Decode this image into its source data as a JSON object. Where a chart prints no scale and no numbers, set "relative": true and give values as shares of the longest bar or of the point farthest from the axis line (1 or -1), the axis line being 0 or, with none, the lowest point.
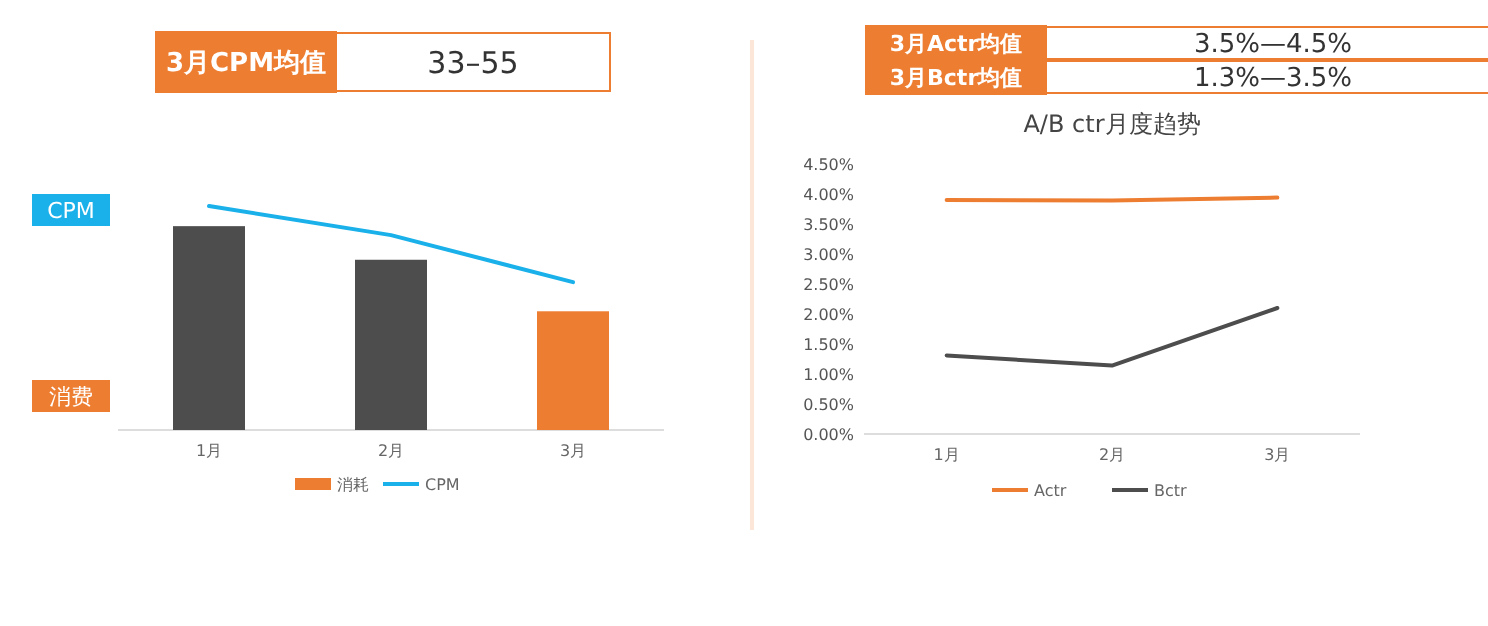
{
  "chart_data": [
    {
      "type": "other",
      "annotations": [
        "3月CPM均值",
        "33–55"
      ]
    },
    {
      "type": "other",
      "annotations": [
        "3月Actr均值",
        "3.5%—4.5%",
        "3月Bctr均值",
        "1.3%—3.5%"
      ]
    },
    {
      "type": "bar",
      "relative": true,
      "categories": [
        "1月",
        "2月",
        "3月"
      ],
      "legend": "bottom",
      "annotations": [
        "CPM",
        "消费"
      ],
      "series": [
        {
          "name": "消耗",
          "type": "bar",
          "color": "#ed7d31",
          "colors": [
            "#4d4d4d",
            "#4d4d4d",
            "#ed7d31"
          ],
          "values": [
            0.91,
            0.76,
            0.53
          ]
        },
        {
          "name": "CPM",
          "type": "line",
          "color": "#1ab0ea",
          "values": [
            1,
            0.87,
            0.66
          ]
        }
      ]
    },
    {
      "type": "line",
      "title": "A/B ctr月度趋势",
      "categories": [
        "1月",
        "2月",
        "3月"
      ],
      "legend": "bottom",
      "ylim": [
        0,
        4.5
      ],
      "yticks": [
        {
          "value": 0,
          "label": "0.00%"
        },
        {
          "value": 0.5,
          "label": "0.50%"
        },
        {
          "value": 1,
          "label": "1.00%"
        },
        {
          "value": 1.5,
          "label": "1.50%"
        },
        {
          "value": 2,
          "label": "2.00%"
        },
        {
          "value": 2.5,
          "label": "2.50%"
        },
        {
          "value": 3,
          "label": "3.00%"
        },
        {
          "value": 3.5,
          "label": "3.50%"
        },
        {
          "value": 4,
          "label": "4.00%"
        },
        {
          "value": 4.5,
          "label": "4.50%"
        }
      ],
      "series": [
        {
          "name": "Actr",
          "color": "#ed7d31",
          "values": [
            3.9,
            3.89,
            3.94
          ]
        },
        {
          "name": "Bctr",
          "color": "#4d4d4d",
          "values": [
            1.31,
            1.14,
            2.1
          ]
        }
      ]
    }
  ]
}
